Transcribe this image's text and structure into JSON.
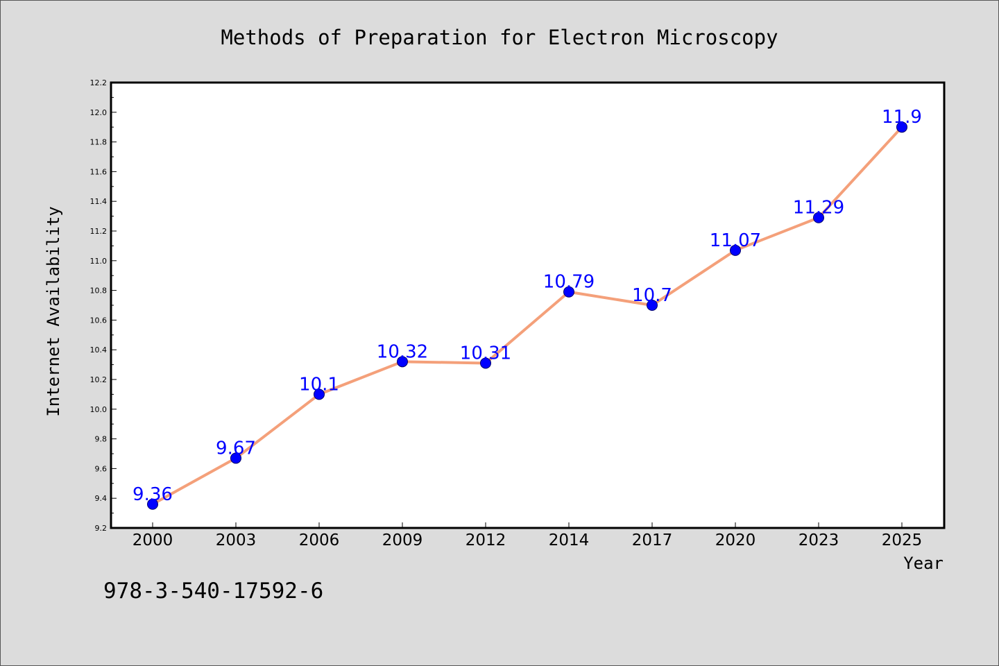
{
  "colors": {
    "line": "#f4a07a",
    "marker": "#0000ff",
    "label": "#0000ff",
    "background": "#dcdcdc",
    "plot_area": "#ffffff"
  },
  "footer": {
    "isbn": "978-3-540-17592-6"
  },
  "chart_data": {
    "type": "line",
    "title": "Methods of Preparation for Electron Microscopy",
    "xlabel": "Year",
    "ylabel": "Internet Availability",
    "categories": [
      "2000",
      "2003",
      "2006",
      "2009",
      "2012",
      "2014",
      "2017",
      "2020",
      "2023",
      "2025"
    ],
    "values": [
      9.36,
      9.67,
      10.1,
      10.32,
      10.31,
      10.79,
      10.7,
      11.07,
      11.29,
      11.9
    ],
    "data_labels": [
      "9.36",
      "9.67",
      "10.1",
      "10.32",
      "10.31",
      "10.79",
      "10.7",
      "11.07",
      "11.29",
      "11.9"
    ],
    "ylim": [
      9.2,
      12.2
    ],
    "yticks": [
      "9.2",
      "9.4",
      "9.6",
      "9.8",
      "10.0",
      "10.2",
      "10.4",
      "10.6",
      "10.8",
      "11.0",
      "11.2",
      "11.4",
      "11.6",
      "11.8",
      "12.0",
      "12.2"
    ],
    "grid": false,
    "legend": "none"
  }
}
